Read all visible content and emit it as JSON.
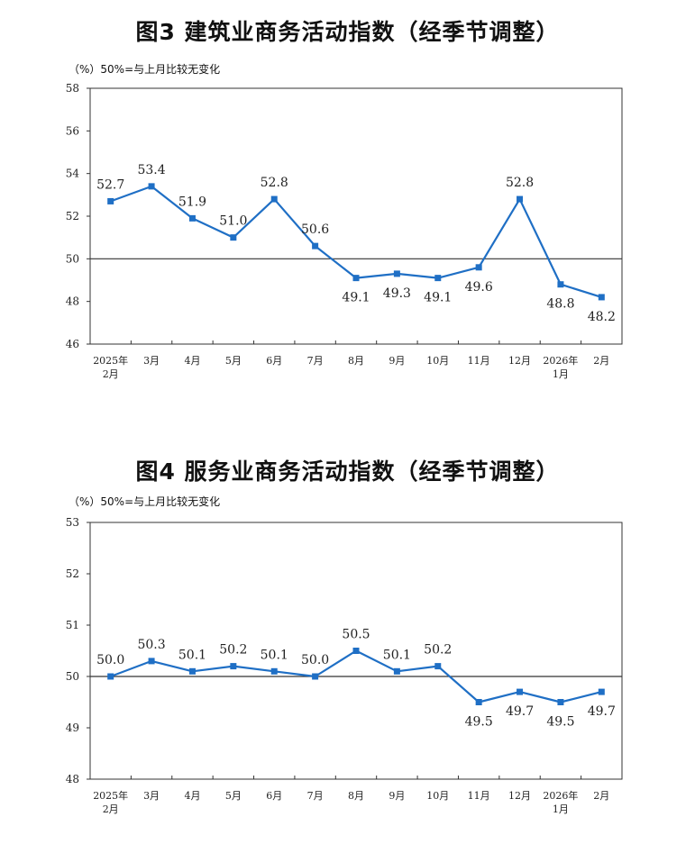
{
  "colors": {
    "series": "#1f6fc5",
    "axis": "#333333",
    "baseline": "#333333"
  },
  "chart_data": [
    {
      "type": "line",
      "title": "图3  建筑业商务活动指数（经季节调整）",
      "unit_note": "（%）50%=与上月比较无变化",
      "categories": [
        [
          "2025年",
          "2月"
        ],
        [
          "3月"
        ],
        [
          "4月"
        ],
        [
          "5月"
        ],
        [
          "6月"
        ],
        [
          "7月"
        ],
        [
          "8月"
        ],
        [
          "9月"
        ],
        [
          "10月"
        ],
        [
          "11月"
        ],
        [
          "12月"
        ],
        [
          "2026年",
          "1月"
        ],
        [
          "2月"
        ]
      ],
      "series": [
        {
          "values": [
            52.7,
            53.4,
            51.9,
            51.0,
            52.8,
            50.6,
            49.1,
            49.3,
            49.1,
            49.6,
            52.8,
            48.8,
            48.2
          ]
        }
      ],
      "labels": [
        "52.7",
        "53.4",
        "51.9",
        "51.0",
        "52.8",
        "50.6",
        "49.1",
        "49.3",
        "49.1",
        "49.6",
        "52.8",
        "48.8",
        "48.2"
      ],
      "label_positions": [
        "above",
        "above",
        "above",
        "above",
        "above",
        "above",
        "below",
        "below",
        "below",
        "below",
        "above",
        "below",
        "below"
      ],
      "ylim": [
        46,
        58
      ],
      "yticks": [
        "46",
        "48",
        "50",
        "52",
        "54",
        "56",
        "58"
      ],
      "baseline": 50,
      "grid": false
    },
    {
      "type": "line",
      "title": "图4  服务业商务活动指数（经季节调整）",
      "unit_note": "（%）50%=与上月比较无变化",
      "categories": [
        [
          "2025年",
          "2月"
        ],
        [
          "3月"
        ],
        [
          "4月"
        ],
        [
          "5月"
        ],
        [
          "6月"
        ],
        [
          "7月"
        ],
        [
          "8月"
        ],
        [
          "9月"
        ],
        [
          "10月"
        ],
        [
          "11月"
        ],
        [
          "12月"
        ],
        [
          "2026年",
          "1月"
        ],
        [
          "2月"
        ]
      ],
      "series": [
        {
          "values": [
            50.0,
            50.3,
            50.1,
            50.2,
            50.1,
            50.0,
            50.5,
            50.1,
            50.2,
            49.5,
            49.7,
            49.5,
            49.7
          ]
        }
      ],
      "labels": [
        "50.0",
        "50.3",
        "50.1",
        "50.2",
        "50.1",
        "50.0",
        "50.5",
        "50.1",
        "50.2",
        "49.5",
        "49.7",
        "49.5",
        "49.7"
      ],
      "label_positions": [
        "above",
        "above",
        "above",
        "above",
        "above",
        "above",
        "above",
        "above",
        "above",
        "below",
        "below",
        "below",
        "below"
      ],
      "ylim": [
        48,
        53
      ],
      "yticks": [
        "48",
        "49",
        "50",
        "51",
        "52",
        "53"
      ],
      "baseline": 50,
      "grid": false
    }
  ]
}
